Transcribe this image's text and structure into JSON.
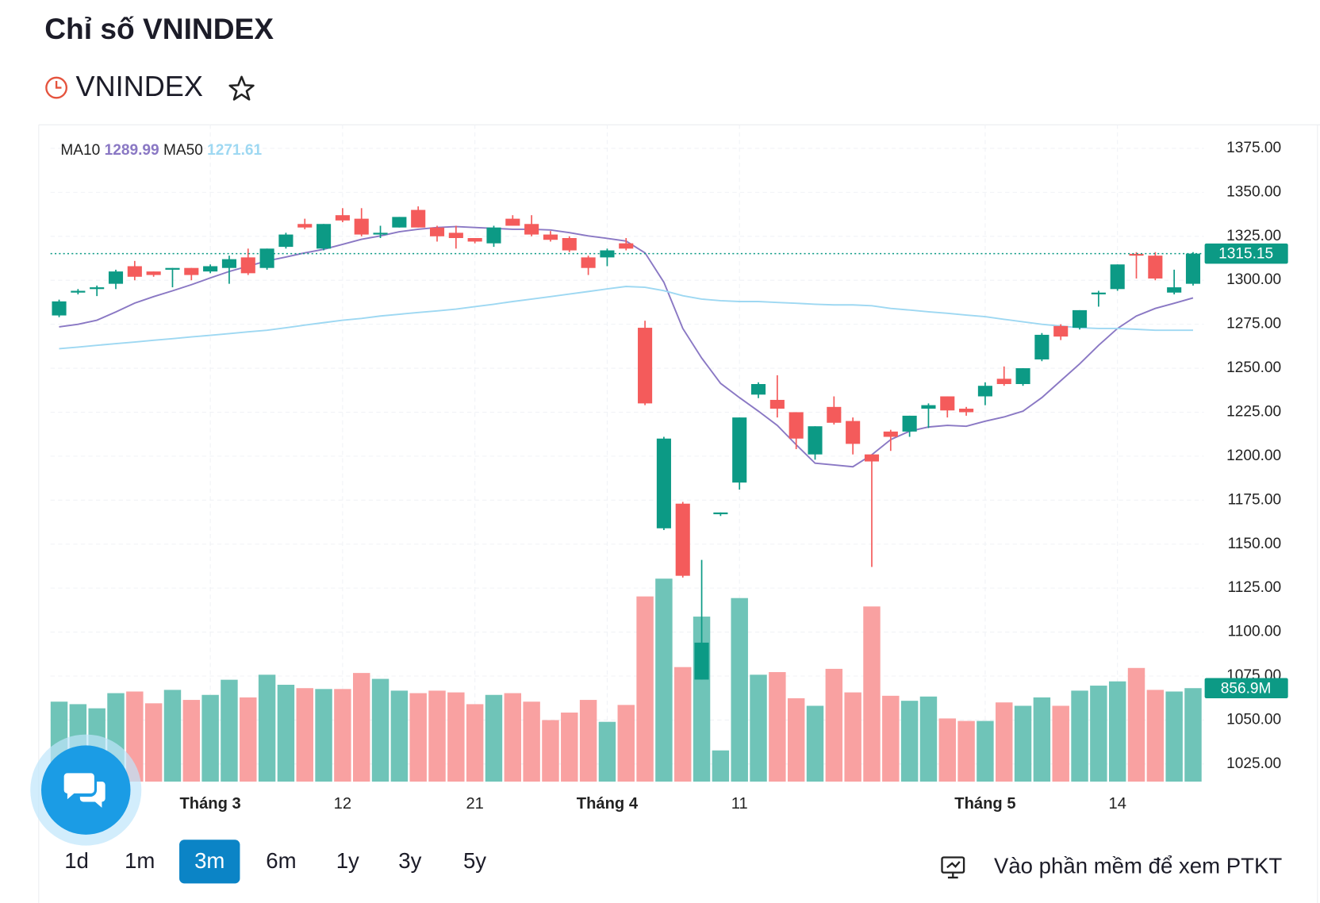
{
  "header": {
    "title": "Chỉ số VNINDEX",
    "symbol": "VNINDEX"
  },
  "chart_data": {
    "type": "candlestick",
    "categories": [
      null,
      null,
      null,
      null,
      null,
      null,
      null,
      null,
      "Tháng 3",
      null,
      null,
      null,
      null,
      null,
      null,
      "12",
      null,
      null,
      null,
      null,
      null,
      null,
      "21",
      null,
      null,
      null,
      null,
      null,
      null,
      "Tháng 4",
      null,
      null,
      null,
      null,
      null,
      null,
      "11",
      null,
      null,
      null,
      null,
      null,
      null,
      null,
      null,
      null,
      null,
      null,
      null,
      "Tháng 5",
      null,
      null,
      null,
      null,
      null,
      null,
      "14",
      null,
      null,
      null,
      null
    ],
    "open": [
      1280,
      1293,
      1295,
      1298,
      1308,
      1305,
      1306,
      1307,
      1305,
      1307,
      1313,
      1307,
      1319,
      1332,
      1318,
      1337,
      1335,
      1326,
      1330,
      1340,
      1330,
      1327,
      1324,
      1321,
      1335,
      1332,
      1326,
      1324,
      1313,
      1313,
      1321,
      1273,
      1159,
      1173,
      1073,
      1167,
      1185,
      1235,
      1232,
      1225,
      1201,
      1228,
      1220,
      1201,
      1214,
      1214,
      1227,
      1234,
      1227,
      1234,
      1244,
      1241,
      1255,
      1274,
      1273,
      1292,
      1295,
      1315,
      1314,
      1293,
      1298
    ],
    "high": [
      1289,
      1295,
      1297,
      1306,
      1311,
      1305,
      1307,
      1307,
      1309,
      1314,
      1318,
      1318,
      1327,
      1335,
      1332,
      1341,
      1341,
      1331,
      1336,
      1342,
      1331,
      1331,
      1324,
      1331,
      1337,
      1337,
      1328,
      1325,
      1314,
      1318,
      1324,
      1277,
      1211,
      1174,
      1141,
      1168,
      1222,
      1242,
      1246,
      1225,
      1217,
      1234,
      1222,
      1201,
      1215,
      1223,
      1230,
      1234,
      1228,
      1242,
      1251,
      1250,
      1270,
      1275,
      1283,
      1294,
      1309,
      1316,
      1316,
      1306,
      1316
    ],
    "low": [
      1279,
      1292,
      1291,
      1295,
      1300,
      1302,
      1296,
      1300,
      1304,
      1298,
      1303,
      1306,
      1318,
      1329,
      1317,
      1333,
      1325,
      1324,
      1330,
      1330,
      1322,
      1318,
      1321,
      1319,
      1331,
      1325,
      1322,
      1316,
      1303,
      1308,
      1317,
      1229,
      1158,
      1131,
      1073,
      1166,
      1181,
      1233,
      1222,
      1204,
      1198,
      1218,
      1201,
      1137,
      1203,
      1211,
      1216,
      1222,
      1223,
      1229,
      1240,
      1240,
      1254,
      1266,
      1272,
      1285,
      1294,
      1301,
      1300,
      1292,
      1297
    ],
    "close": [
      1288,
      1294,
      1296,
      1305,
      1302,
      1303,
      1307,
      1303,
      1308,
      1312,
      1304,
      1318,
      1326,
      1330,
      1332,
      1334,
      1326,
      1327,
      1336,
      1330,
      1325,
      1324,
      1322,
      1330,
      1331,
      1326,
      1323,
      1317,
      1307,
      1317,
      1318,
      1230,
      1210,
      1132,
      1094,
      1168,
      1222,
      1241,
      1227,
      1210,
      1217,
      1219,
      1207,
      1197,
      1211,
      1223,
      1229,
      1226,
      1225,
      1240,
      1241,
      1250,
      1269,
      1268,
      1283,
      1293,
      1309,
      1314,
      1301,
      1296,
      1315.15
    ],
    "up_color": "#0c9a85",
    "down_color": "#f45b5b",
    "series": [
      {
        "name": "MA10",
        "color": "#8a78c4",
        "values": [
          1273.5,
          1275,
          1277.3,
          1282,
          1287,
          1290.7,
          1294,
          1297.5,
          1301.3,
          1305,
          1308,
          1311,
          1313.2,
          1315.6,
          1317.6,
          1320.4,
          1323.3,
          1325.2,
          1327.6,
          1329,
          1330,
          1330.5,
          1330,
          1329.5,
          1329,
          1329,
          1328.6,
          1327.1,
          1325.2,
          1323.8,
          1322.3,
          1315.6,
          1298.9,
          1272.6,
          1255.8,
          1241.4,
          1233.3,
          1225.6,
          1217.5,
          1206.5,
          1196,
          1195,
          1194,
          1200.8,
          1209.4,
          1214.2,
          1216.6,
          1217.5,
          1217,
          1219.9,
          1222.3,
          1225.6,
          1233.3,
          1242.9,
          1252.5,
          1263,
          1272.6,
          1279.7,
          1284,
          1286.9,
          1289.99
        ]
      },
      {
        "name": "MA50",
        "color": "#9ed8f2",
        "values": [
          1261.1,
          1262,
          1263,
          1264,
          1264.9,
          1265.9,
          1266.8,
          1267.8,
          1268.7,
          1269.7,
          1270.7,
          1271.6,
          1273,
          1274.5,
          1275.9,
          1277.3,
          1278.3,
          1279.7,
          1280.7,
          1281.7,
          1282.6,
          1283.6,
          1285,
          1286.4,
          1287.9,
          1289.3,
          1290.7,
          1292.2,
          1293.6,
          1295.1,
          1296.5,
          1296,
          1294.1,
          1291.2,
          1289.3,
          1288.4,
          1287.9,
          1287.9,
          1287.4,
          1286.9,
          1286.4,
          1286,
          1286,
          1285.5,
          1284,
          1283.1,
          1282.1,
          1281.2,
          1280.2,
          1279.3,
          1277.8,
          1276.4,
          1275,
          1274,
          1273,
          1272.6,
          1272.6,
          1272.1,
          1271.6,
          1271.6,
          1271.61
        ]
      }
    ],
    "volume": {
      "values": [
        733,
        710,
        672,
        811,
        826,
        718,
        841,
        749,
        795,
        934,
        772,
        980,
        888,
        857,
        849,
        849,
        996,
        942,
        834,
        811,
        834,
        818,
        710,
        795,
        811,
        733,
        564,
        633,
        749,
        548,
        703,
        1698,
        1861,
        1050,
        1513,
        286,
        1683,
        980,
        1004,
        764,
        695,
        1034,
        818,
        1606,
        787,
        741,
        780,
        579,
        556,
        556,
        726,
        695,
        772,
        695,
        834,
        880,
        919,
        1042,
        841,
        826,
        856.9
      ],
      "value_labels": [
        null,
        null,
        null,
        null,
        null,
        null,
        null,
        null,
        null,
        null,
        null,
        null,
        null,
        null,
        null,
        null,
        null,
        null,
        null,
        null,
        null,
        null,
        null,
        null,
        null,
        null,
        null,
        null,
        null,
        null,
        null,
        null,
        null,
        null,
        null,
        null,
        null,
        null,
        null,
        null,
        null,
        null,
        null,
        null,
        null,
        null,
        null,
        null,
        null,
        null,
        null,
        null,
        null,
        null,
        null,
        null,
        null,
        null,
        null,
        null,
        "856.9M"
      ],
      "up_color": "#6fc4b8",
      "down_color": "#f9a1a1"
    },
    "ylim": [
      1015,
      1388.4
    ],
    "yticks": [
      {
        "value": 1025,
        "label": "1025.00"
      },
      {
        "value": 1050,
        "label": "1050.00"
      },
      {
        "value": 1075,
        "label": "1075.00"
      },
      {
        "value": 1100,
        "label": "1100.00"
      },
      {
        "value": 1125,
        "label": "1125.00"
      },
      {
        "value": 1150,
        "label": "1150.00"
      },
      {
        "value": 1175,
        "label": "1175.00"
      },
      {
        "value": 1200,
        "label": "1200.00"
      },
      {
        "value": 1225,
        "label": "1225.00"
      },
      {
        "value": 1250,
        "label": "1250.00"
      },
      {
        "value": 1275,
        "label": "1275.00"
      },
      {
        "value": 1300,
        "label": "1300.00"
      },
      {
        "value": 1325,
        "label": "1325.00"
      },
      {
        "value": 1350,
        "label": "1350.00"
      },
      {
        "value": 1375,
        "label": "1375.00"
      }
    ],
    "grid": true
  },
  "ranges": {
    "buttons": [
      "1d",
      "1m",
      "3m",
      "6m",
      "1y",
      "3y",
      "5y"
    ],
    "active": 2
  },
  "footer_link": "Vào phần mềm để xem PTKT"
}
